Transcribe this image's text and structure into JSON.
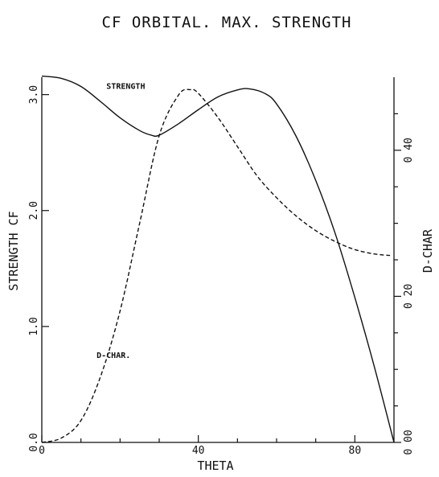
{
  "chart_data": {
    "type": "line",
    "title": "CF ORBITAL. MAX. STRENGTH",
    "xlabel": "THETA",
    "ylabel_left": "STRENGTH CF",
    "ylabel_right": "D-CHAR",
    "xlim": [
      0,
      90
    ],
    "ylim_left": [
      0,
      3.15
    ],
    "ylim_right": [
      0,
      0.5
    ],
    "x_ticks": [
      0,
      40,
      80
    ],
    "x_minor_ticks": [
      10,
      20,
      30,
      50,
      60,
      70
    ],
    "y_left_ticks": [
      "0.0",
      "1.0",
      "2.0",
      "3.0"
    ],
    "y_left_tick_values": [
      0,
      1,
      2,
      3
    ],
    "y_right_ticks": [
      "0 00",
      "0 20",
      "0 40"
    ],
    "y_right_tick_values": [
      0,
      0.2,
      0.4
    ],
    "y_right_minor_ticks": [
      0.05,
      0.1,
      0.15,
      0.25,
      0.3,
      0.35,
      0.45
    ],
    "series": [
      {
        "name": "STRENGTH",
        "axis": "left",
        "style": "solid",
        "x": [
          0,
          5,
          10,
          15,
          20,
          25,
          28,
          30,
          35,
          40,
          45,
          50,
          53,
          57,
          60,
          65,
          70,
          75,
          80,
          85,
          90
        ],
        "y": [
          3.16,
          3.14,
          3.07,
          2.94,
          2.8,
          2.69,
          2.65,
          2.65,
          2.75,
          2.87,
          2.98,
          3.04,
          3.05,
          3.01,
          2.92,
          2.64,
          2.26,
          1.8,
          1.25,
          0.65,
          0.0
        ]
      },
      {
        "name": "D-CHAR.",
        "axis": "right",
        "style": "dashed",
        "x": [
          0,
          5,
          10,
          15,
          20,
          25,
          30,
          35,
          38,
          40,
          45,
          50,
          55,
          60,
          65,
          70,
          75,
          80,
          85,
          89
        ],
        "y": [
          0.0,
          0.006,
          0.03,
          0.09,
          0.18,
          0.3,
          0.42,
          0.476,
          0.483,
          0.478,
          0.445,
          0.405,
          0.365,
          0.335,
          0.31,
          0.29,
          0.275,
          0.264,
          0.258,
          0.256
        ]
      }
    ],
    "annotations": [
      {
        "text": "STRENGTH",
        "x": 16.5,
        "y_left": 3.05
      },
      {
        "text": "D-CHAR.",
        "x": 14,
        "y_left": 0.73
      }
    ]
  }
}
